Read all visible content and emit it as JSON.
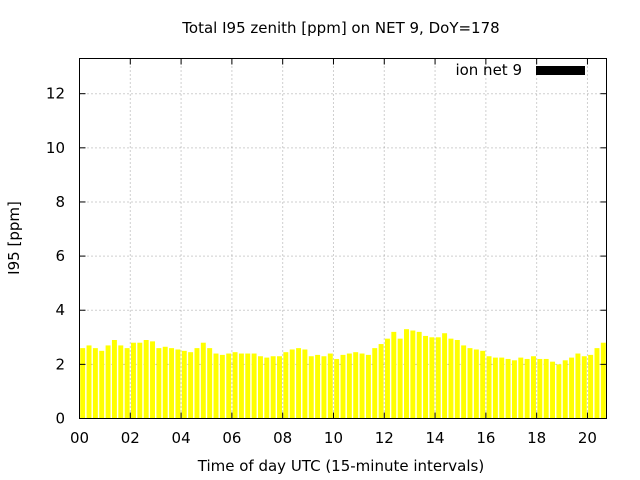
{
  "chart_data": {
    "type": "bar",
    "title": "Total I95 zenith [ppm] on NET 9, DoY=178",
    "xlabel": "Time of day UTC (15-minute intervals)",
    "ylabel": "I95 [ppm]",
    "xlim": [
      0,
      20.75
    ],
    "ylim": [
      0,
      13.3
    ],
    "x_ticks": [
      "00",
      "02",
      "04",
      "06",
      "08",
      "10",
      "12",
      "14",
      "16",
      "18",
      "20"
    ],
    "x_tick_values": [
      0,
      2,
      4,
      6,
      8,
      10,
      12,
      14,
      16,
      18,
      20
    ],
    "y_ticks": [
      "0",
      "2",
      "4",
      "6",
      "8",
      "10",
      "12"
    ],
    "y_tick_values": [
      0,
      2,
      4,
      6,
      8,
      10,
      12
    ],
    "grid": true,
    "legend_position": "top-right",
    "bar_color": "#ffff00",
    "series": [
      {
        "name": "ion net 9",
        "legend_swatch_color": "#000000",
        "x_start": 0,
        "x_step": 0.25,
        "values": [
          2.6,
          2.7,
          2.6,
          2.5,
          2.7,
          2.9,
          2.7,
          2.6,
          2.8,
          2.8,
          2.9,
          2.85,
          2.6,
          2.65,
          2.6,
          2.55,
          2.5,
          2.45,
          2.6,
          2.8,
          2.6,
          2.4,
          2.35,
          2.4,
          2.45,
          2.4,
          2.4,
          2.4,
          2.3,
          2.25,
          2.3,
          2.3,
          2.45,
          2.55,
          2.6,
          2.55,
          2.3,
          2.35,
          2.3,
          2.4,
          2.2,
          2.35,
          2.4,
          2.45,
          2.4,
          2.35,
          2.6,
          2.75,
          2.95,
          3.2,
          2.95,
          3.3,
          3.25,
          3.2,
          3.05,
          3.0,
          3.0,
          3.15,
          2.95,
          2.9,
          2.7,
          2.6,
          2.55,
          2.5,
          2.3,
          2.25,
          2.25,
          2.2,
          2.15,
          2.25,
          2.2,
          2.3,
          2.2,
          2.2,
          2.1,
          2.0,
          2.15,
          2.25,
          2.4,
          2.3,
          2.35,
          2.6,
          2.8
        ]
      }
    ]
  }
}
